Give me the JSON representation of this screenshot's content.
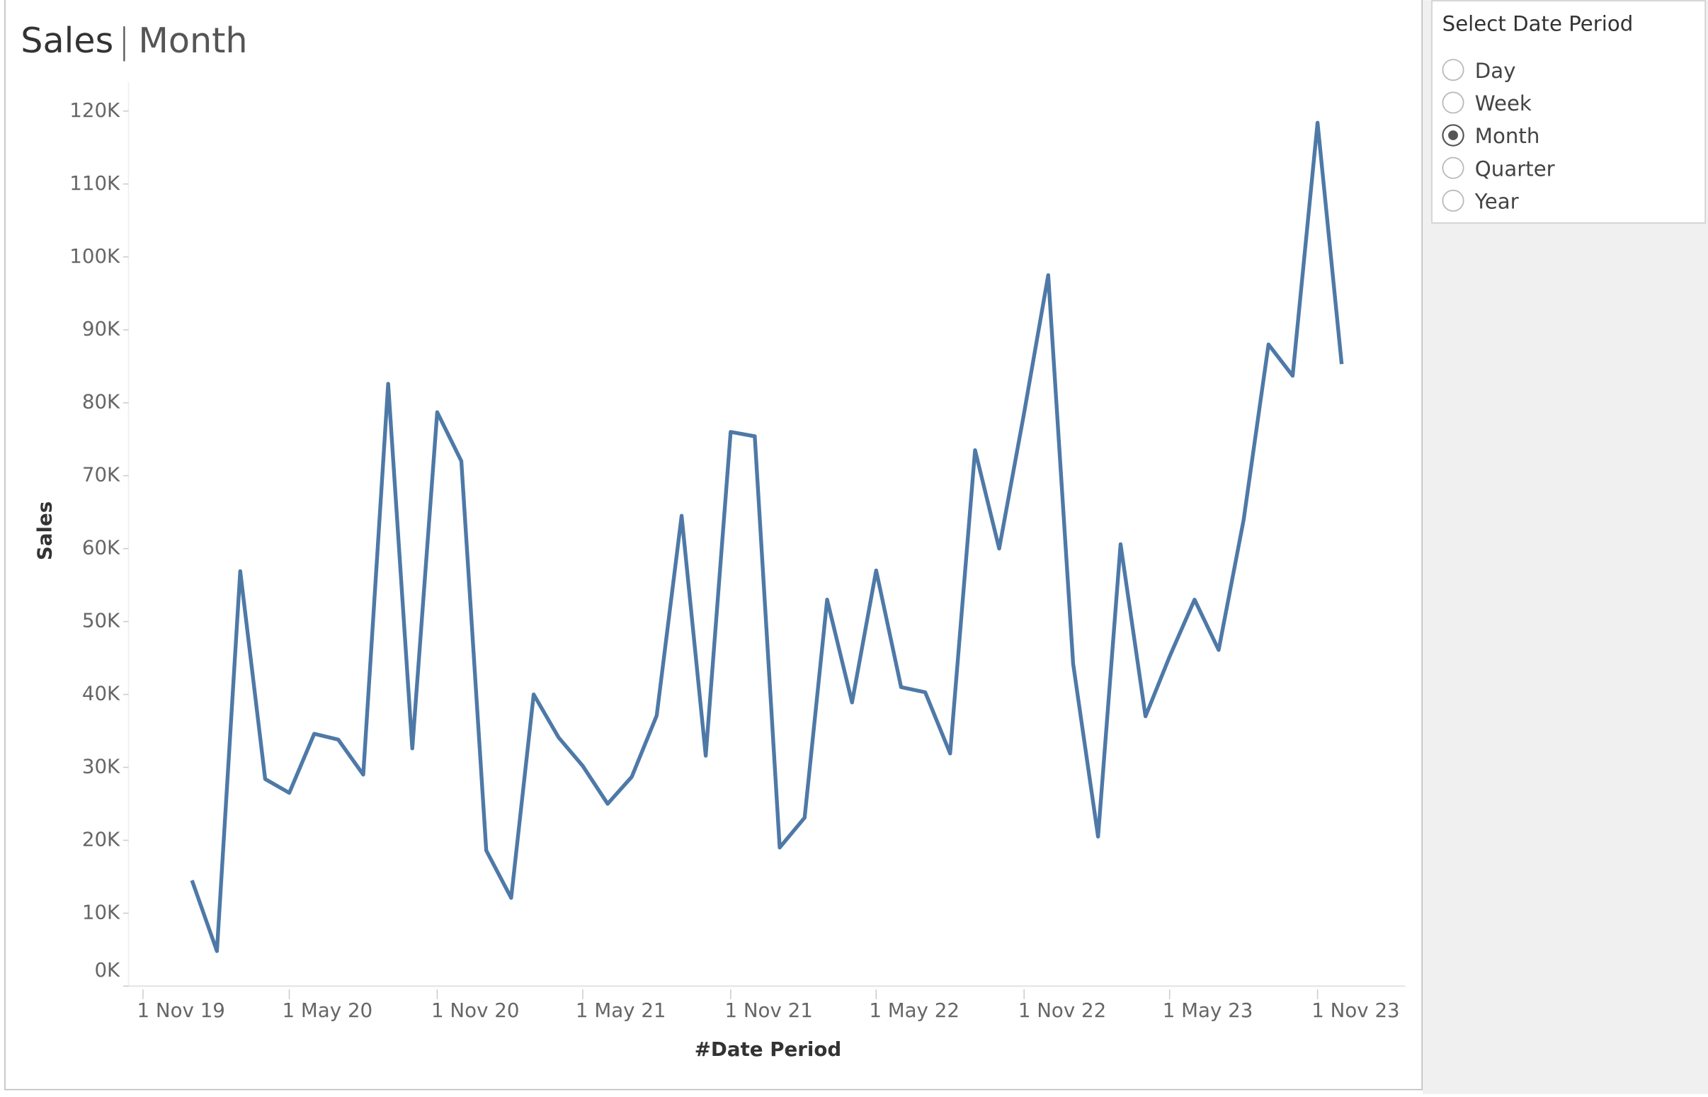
{
  "chart_data": {
    "type": "line",
    "title": "Sales",
    "subtitle": "Month",
    "x_label": "#Date Period",
    "y_label": "Sales",
    "color": "#4e79a7",
    "x": [
      "2020-01-01",
      "2020-02-01",
      "2020-03-01",
      "2020-04-01",
      "2020-05-01",
      "2020-06-01",
      "2020-07-01",
      "2020-08-01",
      "2020-09-01",
      "2020-10-01",
      "2020-11-01",
      "2020-12-01",
      "2021-01-01",
      "2021-02-01",
      "2021-03-01",
      "2021-04-01",
      "2021-05-01",
      "2021-06-01",
      "2021-07-01",
      "2021-08-01",
      "2021-09-01",
      "2021-10-01",
      "2021-11-01",
      "2021-12-01",
      "2022-01-01",
      "2022-02-01",
      "2022-03-01",
      "2022-04-01",
      "2022-05-01",
      "2022-06-01",
      "2022-07-01",
      "2022-08-01",
      "2022-09-01",
      "2022-10-01",
      "2022-11-01",
      "2022-12-01",
      "2023-01-01",
      "2023-02-01",
      "2023-03-01",
      "2023-04-01",
      "2023-05-01",
      "2023-06-01",
      "2023-07-01",
      "2023-08-01",
      "2023-09-01",
      "2023-10-01",
      "2023-11-01",
      "2023-12-01"
    ],
    "values": [
      14500,
      4800,
      56900,
      28400,
      26500,
      34600,
      33800,
      29000,
      82600,
      32600,
      78700,
      72000,
      18600,
      12100,
      40000,
      34100,
      30200,
      25000,
      28700,
      37100,
      64500,
      31600,
      76000,
      75400,
      19000,
      23100,
      53000,
      38900,
      57000,
      41000,
      40300,
      31900,
      73500,
      60000,
      78600,
      97500,
      44200,
      20500,
      60600,
      37000,
      45200,
      53000,
      46100,
      63900,
      88000,
      83700,
      118400,
      85300
    ],
    "xlim": [
      "2019-10-10",
      "2024-02-18"
    ],
    "xticks": [
      {
        "value": "2019-11-01",
        "label": "1 Nov 19"
      },
      {
        "value": "2020-05-01",
        "label": "1 May 20"
      },
      {
        "value": "2020-11-01",
        "label": "1 Nov 20"
      },
      {
        "value": "2021-05-01",
        "label": "1 May 21"
      },
      {
        "value": "2021-11-01",
        "label": "1 Nov 21"
      },
      {
        "value": "2022-05-01",
        "label": "1 May 22"
      },
      {
        "value": "2022-11-01",
        "label": "1 Nov 22"
      },
      {
        "value": "2023-05-01",
        "label": "1 May 23"
      },
      {
        "value": "2023-11-01",
        "label": "1 Nov 23"
      }
    ],
    "ylim": [
      0,
      124000
    ],
    "yticks": [
      {
        "value": 0,
        "label": "0K"
      },
      {
        "value": 10000,
        "label": "10K"
      },
      {
        "value": 20000,
        "label": "20K"
      },
      {
        "value": 30000,
        "label": "30K"
      },
      {
        "value": 40000,
        "label": "40K"
      },
      {
        "value": 50000,
        "label": "50K"
      },
      {
        "value": 60000,
        "label": "60K"
      },
      {
        "value": 70000,
        "label": "70K"
      },
      {
        "value": 80000,
        "label": "80K"
      },
      {
        "value": 90000,
        "label": "90K"
      },
      {
        "value": 100000,
        "label": "100K"
      },
      {
        "value": 110000,
        "label": "110K"
      },
      {
        "value": 120000,
        "label": "120K"
      }
    ],
    "grid": false
  },
  "filter": {
    "title": "Select Date Period",
    "options": [
      "Day",
      "Week",
      "Month",
      "Quarter",
      "Year"
    ],
    "selected": "Month"
  }
}
